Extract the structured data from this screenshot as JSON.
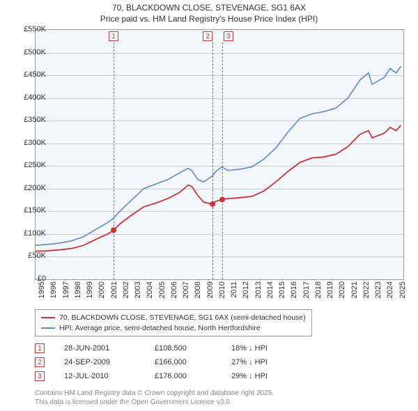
{
  "title": {
    "line1": "70, BLACKDOWN CLOSE, STEVENAGE, SG1 6AX",
    "line2": "Price paid vs. HM Land Registry's House Price Index (HPI)",
    "fontsize": 12,
    "color": "#333333"
  },
  "chart": {
    "type": "line",
    "background_color": "#f3f6fa",
    "grid_color": "#cccccc",
    "border_color": "#999999",
    "xlim": [
      1995,
      2025.6
    ],
    "ylim": [
      0,
      550000
    ],
    "ytick_step": 50000,
    "yticks": [
      "£0",
      "£50K",
      "£100K",
      "£150K",
      "£200K",
      "£250K",
      "£300K",
      "£350K",
      "£400K",
      "£450K",
      "£500K",
      "£550K"
    ],
    "xticks": [
      1995,
      1996,
      1997,
      1998,
      1999,
      2000,
      2001,
      2002,
      2003,
      2004,
      2005,
      2006,
      2007,
      2008,
      2009,
      2010,
      2011,
      2012,
      2013,
      2014,
      2015,
      2016,
      2017,
      2018,
      2019,
      2020,
      2021,
      2022,
      2023,
      2024,
      2025
    ],
    "label_fontsize": 11,
    "series": {
      "hpi": {
        "color": "#5a8bc9",
        "line_width": 1.6,
        "points": [
          [
            1995,
            75
          ],
          [
            1996,
            77
          ],
          [
            1997,
            80
          ],
          [
            1998,
            85
          ],
          [
            1999,
            94
          ],
          [
            2000,
            110
          ],
          [
            2001,
            125
          ],
          [
            2001.5,
            135
          ],
          [
            2002,
            150
          ],
          [
            2003,
            175
          ],
          [
            2004,
            200
          ],
          [
            2005,
            210
          ],
          [
            2006,
            220
          ],
          [
            2007,
            235
          ],
          [
            2007.7,
            245
          ],
          [
            2008,
            240
          ],
          [
            2008.5,
            220
          ],
          [
            2009,
            215
          ],
          [
            2009.7,
            228
          ],
          [
            2010,
            238
          ],
          [
            2010.5,
            248
          ],
          [
            2011,
            240
          ],
          [
            2012,
            243
          ],
          [
            2013,
            248
          ],
          [
            2014,
            265
          ],
          [
            2015,
            290
          ],
          [
            2016,
            325
          ],
          [
            2017,
            355
          ],
          [
            2018,
            365
          ],
          [
            2019,
            370
          ],
          [
            2020,
            378
          ],
          [
            2021,
            400
          ],
          [
            2022,
            440
          ],
          [
            2022.7,
            455
          ],
          [
            2023,
            430
          ],
          [
            2024,
            445
          ],
          [
            2024.5,
            465
          ],
          [
            2025,
            455
          ],
          [
            2025.4,
            470
          ]
        ]
      },
      "property": {
        "color": "#cc3333",
        "line_width": 1.8,
        "points": [
          [
            1995,
            62
          ],
          [
            1996,
            63
          ],
          [
            1997,
            65
          ],
          [
            1998,
            68
          ],
          [
            1999,
            75
          ],
          [
            2000,
            88
          ],
          [
            2001,
            100
          ],
          [
            2001.5,
            108
          ],
          [
            2002,
            122
          ],
          [
            2003,
            142
          ],
          [
            2004,
            160
          ],
          [
            2005,
            168
          ],
          [
            2006,
            178
          ],
          [
            2007,
            192
          ],
          [
            2007.7,
            208
          ],
          [
            2008,
            205
          ],
          [
            2008.5,
            185
          ],
          [
            2009,
            170
          ],
          [
            2009.7,
            166
          ],
          [
            2010,
            172
          ],
          [
            2010.5,
            176
          ],
          [
            2011,
            178
          ],
          [
            2012,
            180
          ],
          [
            2013,
            183
          ],
          [
            2014,
            195
          ],
          [
            2015,
            215
          ],
          [
            2016,
            238
          ],
          [
            2017,
            258
          ],
          [
            2018,
            268
          ],
          [
            2019,
            270
          ],
          [
            2020,
            276
          ],
          [
            2021,
            293
          ],
          [
            2022,
            320
          ],
          [
            2022.7,
            328
          ],
          [
            2023,
            312
          ],
          [
            2024,
            322
          ],
          [
            2024.5,
            335
          ],
          [
            2025,
            328
          ],
          [
            2025.4,
            340
          ]
        ]
      }
    },
    "markers": [
      {
        "x": 2001.49,
        "y": 108.5,
        "color": "#cc3333",
        "size": 4
      },
      {
        "x": 2009.73,
        "y": 166,
        "color": "#cc3333",
        "size": 4
      },
      {
        "x": 2010.53,
        "y": 176,
        "color": "#cc3333",
        "size": 4
      }
    ],
    "annotations": [
      {
        "n": "1",
        "x": 2001.49
      },
      {
        "n": "2",
        "x": 2009.73
      },
      {
        "n": "3",
        "x": 2010.53
      }
    ],
    "annotation_line_color": "#d05050",
    "annotation_box_border": "#cc3333",
    "annotation_box_text": "#cc3333"
  },
  "legend": {
    "items": [
      {
        "color": "#cc3333",
        "label": "70, BLACKDOWN CLOSE, STEVENAGE, SG1 6AX (semi-detached house)"
      },
      {
        "color": "#5a8bc9",
        "label": "HPI: Average price, semi-detached house, North Hertfordshire"
      }
    ],
    "fontsize": 10.5,
    "border_color": "#999999"
  },
  "sales": [
    {
      "n": "1",
      "date": "28-JUN-2001",
      "price": "£108,500",
      "diff": "18% ↓ HPI"
    },
    {
      "n": "2",
      "date": "24-SEP-2009",
      "price": "£166,000",
      "diff": "27% ↓ HPI"
    },
    {
      "n": "3",
      "date": "12-JUL-2010",
      "price": "£176,000",
      "diff": "29% ↓ HPI"
    }
  ],
  "footer": {
    "line1": "Contains HM Land Registry data © Crown copyright and database right 2025.",
    "line2": "This data is licensed under the Open Government Licence v3.0.",
    "color": "#888888",
    "fontsize": 10
  }
}
